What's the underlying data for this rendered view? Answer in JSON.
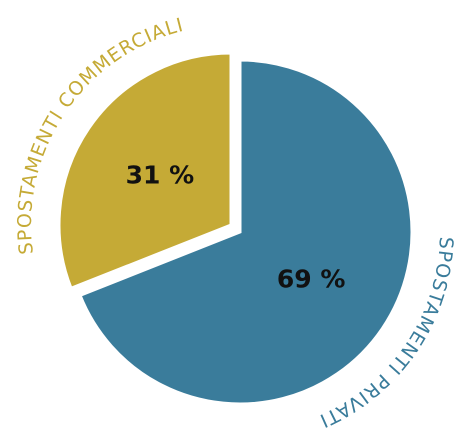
{
  "chart_data": {
    "type": "pie",
    "categories": [
      "SPOSTAMENTI PRIVATI",
      "SPOSTAMENTI COMMERCIALI"
    ],
    "series": [
      {
        "values": [
          69,
          31
        ],
        "value_labels": [
          "69 %",
          "31 %"
        ],
        "colors": [
          "#3a7c9b",
          "#c5aa36"
        ]
      }
    ]
  }
}
